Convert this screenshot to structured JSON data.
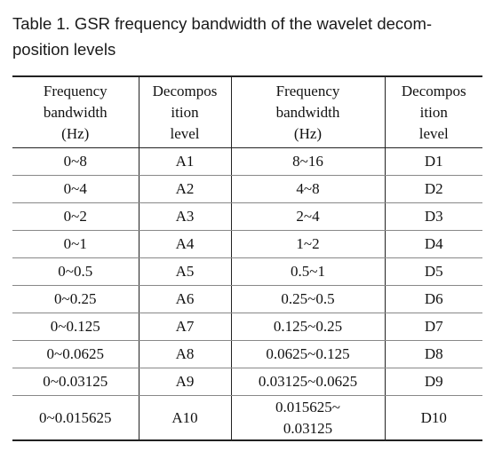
{
  "caption": "Table 1. GSR frequency bandwidth of the wavelet decom-\nposition levels",
  "headers": [
    "Frequency\nbandwidth\n(Hz)",
    "Decompos\nition\nlevel",
    "Frequency\nbandwidth\n(Hz)",
    "Decompos\nition\nlevel"
  ],
  "rows": [
    [
      "0~8",
      "A1",
      "8~16",
      "D1"
    ],
    [
      "0~4",
      "A2",
      "4~8",
      "D2"
    ],
    [
      "0~2",
      "A3",
      "2~4",
      "D3"
    ],
    [
      "0~1",
      "A4",
      "1~2",
      "D4"
    ],
    [
      "0~0.5",
      "A5",
      "0.5~1",
      "D5"
    ],
    [
      "0~0.25",
      "A6",
      "0.25~0.5",
      "D6"
    ],
    [
      "0~0.125",
      "A7",
      "0.125~0.25",
      "D7"
    ],
    [
      "0~0.0625",
      "A8",
      "0.0625~0.125",
      "D8"
    ],
    [
      "0~0.03125",
      "A9",
      "0.03125~0.0625",
      "D9"
    ],
    [
      "0~0.015625",
      "A10",
      "0.015625~\n0.03125",
      "D10"
    ]
  ]
}
